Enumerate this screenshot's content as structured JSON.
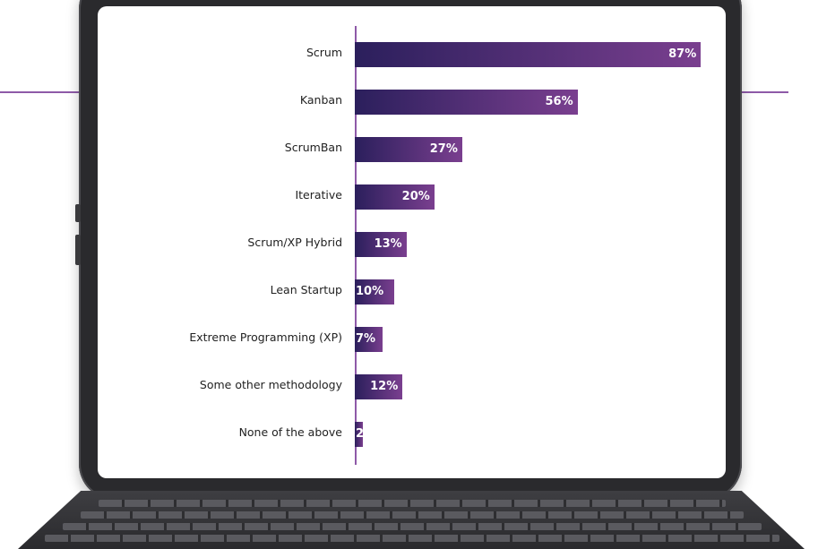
{
  "colors": {
    "bar_start": "#2b1f5c",
    "bar_end": "#7a3f8f",
    "accent": "#8e5aa8",
    "device": "#2a2a2d"
  },
  "chart_data": {
    "type": "bar",
    "orientation": "horizontal",
    "categories": [
      "Scrum",
      "Kanban",
      "ScrumBan",
      "Iterative",
      "Scrum/XP Hybrid",
      "Lean Startup",
      "Extreme Programming (XP)",
      "Some other methodology",
      "None of the above"
    ],
    "values": [
      87,
      56,
      27,
      20,
      13,
      10,
      7,
      12,
      2
    ],
    "value_labels": [
      "87%",
      "56%",
      "27%",
      "20%",
      "13%",
      "10%",
      "7%",
      "12%",
      "2%"
    ],
    "xlim": [
      0,
      100
    ],
    "grid": false,
    "legend": "none"
  }
}
